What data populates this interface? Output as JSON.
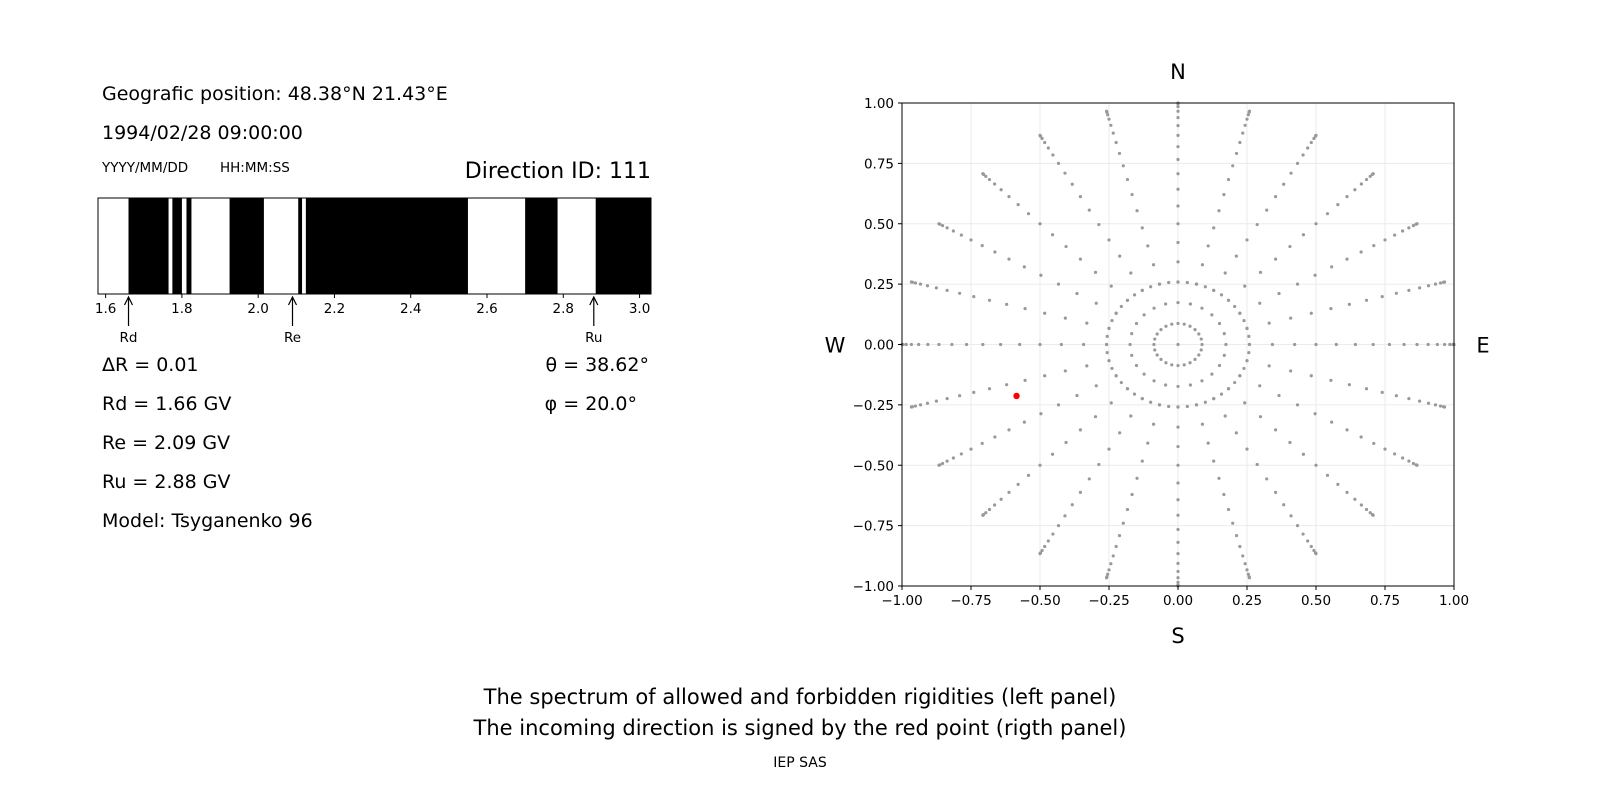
{
  "info": {
    "position": "Geografic position: 48.38°N 21.43°E",
    "datetime": "1994/02/28 09:00:00",
    "date_format": "YYYY/MM/DD",
    "time_format": "HH:MM:SS",
    "direction_id": "Direction ID: 111"
  },
  "params": {
    "delta_r": "ΔR = 0.01",
    "rd": "Rd = 1.66 GV",
    "re": "Re = 2.09 GV",
    "ru": "Ru = 2.88 GV",
    "model": "Model: Tsyganenko 96",
    "theta": "θ = 38.62°",
    "phi": "φ = 20.0°"
  },
  "caption": {
    "line1": "The spectrum of allowed and forbidden rigidities (left panel)",
    "line2": "The incoming direction is signed by the red point (rigth panel)",
    "credit": "IEP SAS"
  },
  "chart_data": [
    {
      "type": "bar",
      "name": "rigidity-spectrum",
      "xlim": [
        1.58,
        3.03
      ],
      "ticks": [
        1.6,
        1.8,
        2.0,
        2.2,
        2.4,
        2.6,
        2.8,
        3.0
      ],
      "tick_labels": [
        "1.6",
        "1.8",
        "2.0",
        "2.2",
        "2.4",
        "2.6",
        "2.8",
        "3.0"
      ],
      "forbidden_intervals": [
        [
          1.66,
          1.765
        ],
        [
          1.775,
          1.8
        ],
        [
          1.812,
          1.825
        ],
        [
          1.925,
          2.015
        ],
        [
          2.105,
          2.115
        ],
        [
          2.125,
          2.55
        ],
        [
          2.7,
          2.785
        ],
        [
          2.885,
          3.03
        ]
      ],
      "colors": {
        "forbidden": "#000000",
        "allowed": "#ffffff"
      },
      "markers": [
        {
          "label": "Rd",
          "value": 1.66
        },
        {
          "label": "Re",
          "value": 2.09
        },
        {
          "label": "Ru",
          "value": 2.88
        }
      ]
    },
    {
      "type": "scatter",
      "name": "direction-map",
      "xlim": [
        -1.0,
        1.0
      ],
      "ylim": [
        -1.0,
        1.0
      ],
      "ticks": [
        -1.0,
        -0.75,
        -0.5,
        -0.25,
        0.0,
        0.25,
        0.5,
        0.75,
        1.0
      ],
      "tick_labels": [
        "−1.00",
        "−0.75",
        "−0.50",
        "−0.25",
        "0.00",
        "0.25",
        "0.50",
        "0.75",
        "1.00"
      ],
      "y_tick_labels": [
        "−1.00",
        "−0.75",
        "−0.50",
        "−0.25",
        "0.00",
        "0.25",
        "0.50",
        "0.75",
        "1.00"
      ],
      "grid": true,
      "compass": {
        "n": "N",
        "s": "S",
        "e": "E",
        "w": "W"
      },
      "grid_points": {
        "description_rule": "zenith angles 0-90 deg step 5, azimuths every 15 deg; r = sin(theta)",
        "zenith_step_deg": 5,
        "azimuth_step_deg": 15,
        "center": [
          0,
          0
        ],
        "color": "#999999"
      },
      "highlight": {
        "x": -0.585,
        "y": -0.213,
        "color": "#ff0000"
      }
    }
  ]
}
